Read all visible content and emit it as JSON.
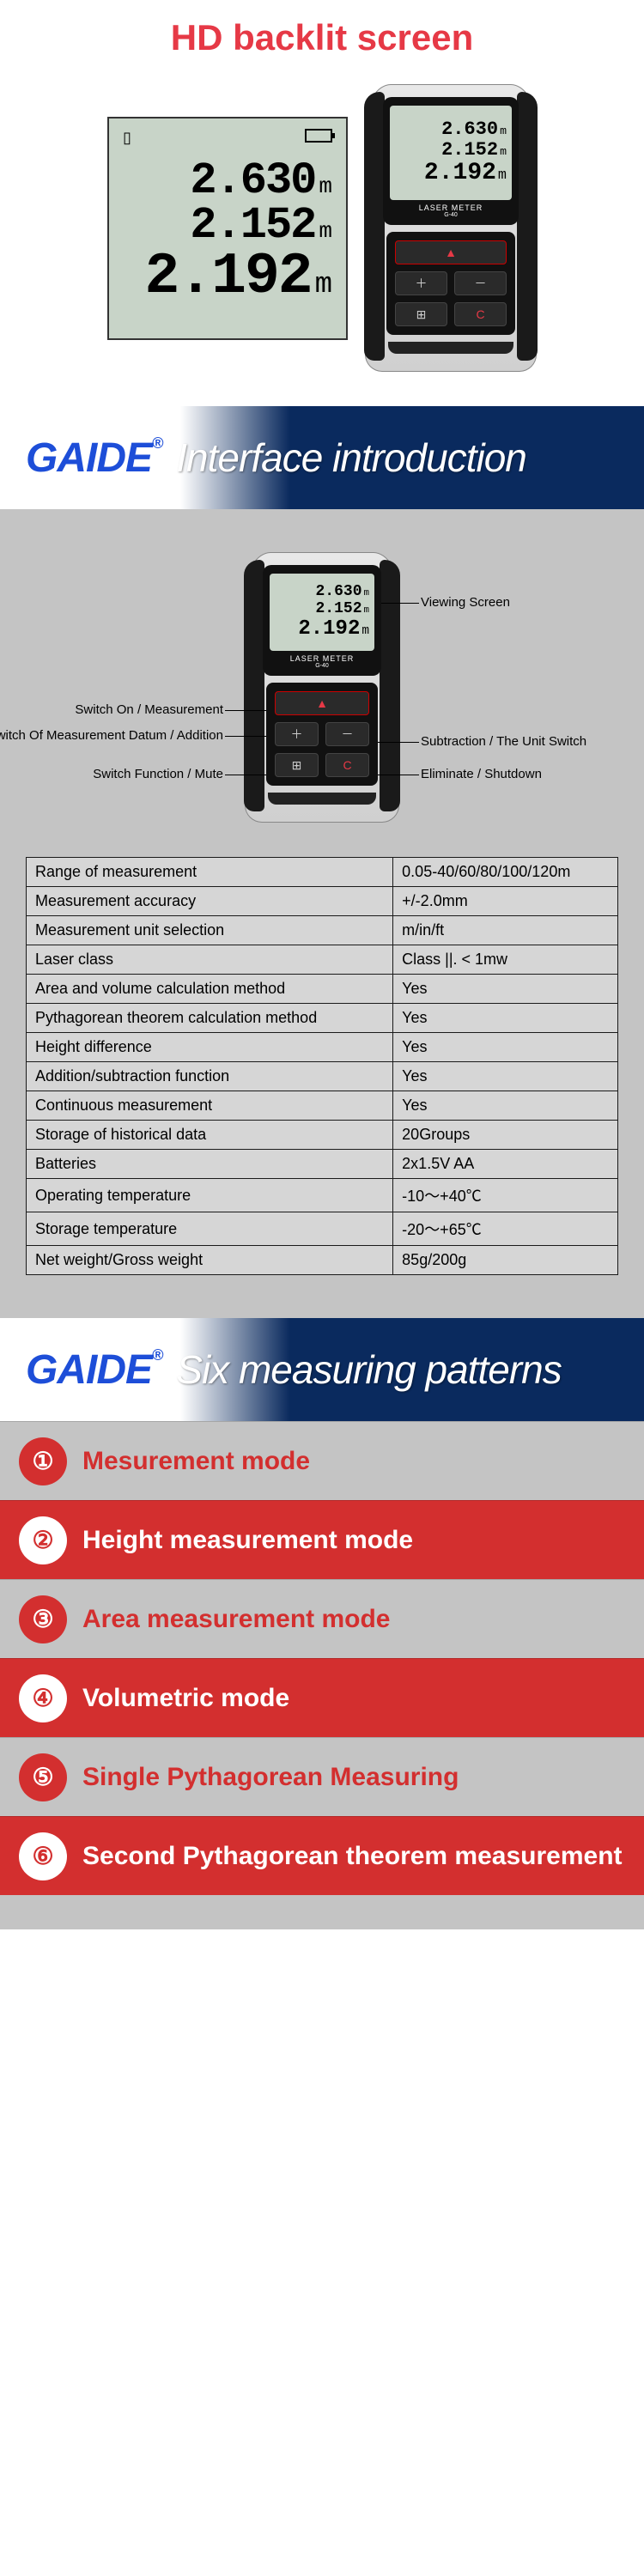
{
  "brand": "GAIDE",
  "section1": {
    "title": "HD backlit screen",
    "lcd": {
      "v1": "2.630",
      "v2": "2.152",
      "v3": "2.192",
      "unit": "m"
    },
    "device_label": "LASER METER",
    "device_model": "G-40"
  },
  "header2": {
    "title": "Interface introduction"
  },
  "diagram": {
    "callouts": {
      "viewing": "Viewing Screen",
      "switch_on": "Switch On / Measurement",
      "datum": "Switch Of Measurement Datum / Addition",
      "func": "Switch Function / Mute",
      "sub": "Subtraction / The Unit Switch",
      "elim": "Eliminate / Shutdown"
    }
  },
  "specs": [
    [
      "Range of measurement",
      "0.05-40/60/80/100/120m"
    ],
    [
      "Measurement accuracy",
      "+/-2.0mm"
    ],
    [
      "Measurement unit selection",
      "m/in/ft"
    ],
    [
      "Laser class",
      "Class ||. < 1mw"
    ],
    [
      "Area and volume calculation method",
      "Yes"
    ],
    [
      "Pythagorean theorem calculation method",
      "Yes"
    ],
    [
      "Height difference",
      "Yes"
    ],
    [
      "Addition/subtraction function",
      "Yes"
    ],
    [
      "Continuous measurement",
      "Yes"
    ],
    [
      "Storage of historical data",
      "20Groups"
    ],
    [
      "Batteries",
      "2x1.5V AA"
    ],
    [
      "Operating temperature",
      "-10～+40℃"
    ],
    [
      "Storage temperature",
      "-20～+65℃"
    ],
    [
      "Net weight/Gross weight",
      "85g/200g"
    ]
  ],
  "header3": {
    "title": "Six measuring patterns"
  },
  "modes": [
    {
      "n": "①",
      "t": "Mesurement mode"
    },
    {
      "n": "②",
      "t": "Height measurement mode"
    },
    {
      "n": "③",
      "t": "Area measurement mode"
    },
    {
      "n": "④",
      "t": "Volumetric mode"
    },
    {
      "n": "⑤",
      "t": "Single Pythagorean Measuring"
    },
    {
      "n": "⑥",
      "t": "Second Pythagorean theorem measurement"
    }
  ],
  "colors": {
    "accent_red": "#d32f2f",
    "title_red": "#e63946",
    "brand_blue": "#1d4ed8",
    "header_navy": "#0a2a5e",
    "bg_grey": "#c4c4c4",
    "lcd_bg": "#c8d4c8"
  }
}
